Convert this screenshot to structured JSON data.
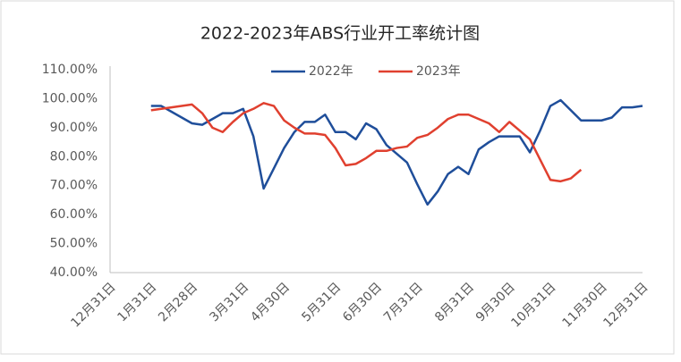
{
  "chart_data": {
    "type": "line",
    "title": "2022-2023年ABS行业开工率统计图",
    "categories": [
      "12月31日",
      null,
      null,
      null,
      "1月31日",
      null,
      null,
      null,
      "2月28日",
      null,
      null,
      null,
      null,
      "3月31日",
      null,
      null,
      null,
      "4月30日",
      null,
      null,
      null,
      null,
      "5月31日",
      null,
      null,
      null,
      "6月30日",
      null,
      null,
      null,
      "7月31日",
      null,
      null,
      null,
      null,
      "8月31日",
      null,
      null,
      null,
      "9月30日",
      null,
      null,
      null,
      "10月31日",
      null,
      null,
      null,
      null,
      "11月30日",
      null,
      null,
      null,
      "12月31日"
    ],
    "series": [
      {
        "name": "2022年",
        "color": "#1f4e9a",
        "values": [
          null,
          null,
          null,
          null,
          97.5,
          97.5,
          95.5,
          93.5,
          91.5,
          91,
          93,
          95,
          95,
          96.5,
          87,
          69,
          76,
          83,
          88.5,
          92,
          92,
          94.5,
          88.5,
          88.5,
          86,
          91.5,
          89.5,
          84,
          81,
          78,
          70.5,
          63.5,
          68,
          74,
          76.5,
          74,
          82.5,
          85,
          87,
          87,
          87,
          81.5,
          89,
          97.5,
          99.5,
          96,
          92.5,
          92.5,
          92.5,
          93.5,
          97,
          97,
          97.5
        ]
      },
      {
        "name": "2023年",
        "color": "#e0402f",
        "values": [
          null,
          null,
          null,
          null,
          96,
          96.5,
          97,
          97.5,
          98,
          95,
          90,
          88.5,
          92,
          95,
          96.5,
          98.5,
          97.5,
          92.5,
          90,
          88,
          88,
          87.5,
          83,
          77,
          77.5,
          79.5,
          82,
          82,
          83,
          83.5,
          86.5,
          87.5,
          90,
          93,
          94.5,
          94.5,
          93,
          91.5,
          88.5,
          92,
          89,
          86,
          79,
          72,
          71.5,
          72.5,
          75.5,
          null,
          null,
          null,
          null,
          null,
          null
        ]
      }
    ],
    "ylim": [
      40,
      110
    ],
    "yticks": [
      {
        "value": 40,
        "label": "40.00%"
      },
      {
        "value": 50,
        "label": "50.00%"
      },
      {
        "value": 60,
        "label": "60.00%"
      },
      {
        "value": 70,
        "label": "70.00%"
      },
      {
        "value": 80,
        "label": "80.00%"
      },
      {
        "value": 90,
        "label": "90.00%"
      },
      {
        "value": 100,
        "label": "100.00%"
      },
      {
        "value": 110,
        "label": "110.00%"
      }
    ],
    "grid": false,
    "legend": "top"
  }
}
